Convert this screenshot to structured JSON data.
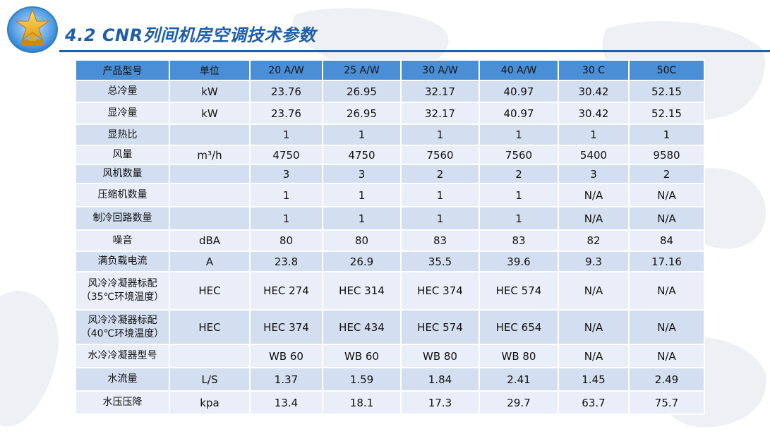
{
  "slide": {
    "title": "4.2 CNR列间机房空调技术参数"
  },
  "table": {
    "headers": [
      "产品型号",
      "单位",
      "20 A/W",
      "25 A/W",
      "30 A/W",
      "40 A/W",
      "30 C",
      "50C"
    ],
    "rows": [
      {
        "label": "总冷量",
        "unit": "kW",
        "values": [
          "23.76",
          "26.95",
          "32.17",
          "40.97",
          "30.42",
          "52.15"
        ]
      },
      {
        "label": "显冷量",
        "unit": "kW",
        "values": [
          "23.76",
          "26.95",
          "32.17",
          "40.97",
          "30.42",
          "52.15"
        ]
      },
      {
        "label": "显热比",
        "unit": "",
        "values": [
          "1",
          "1",
          "1",
          "1",
          "1",
          "1"
        ]
      },
      {
        "label": "风量",
        "unit": "m³/h",
        "values": [
          "4750",
          "4750",
          "7560",
          "7560",
          "5400",
          "9580"
        ]
      },
      {
        "label": "风机数量",
        "unit": "",
        "values": [
          "3",
          "3",
          "2",
          "2",
          "3",
          "2"
        ]
      },
      {
        "label": "压缩机数量",
        "unit": "",
        "values": [
          "1",
          "1",
          "1",
          "1",
          "N/A",
          "N/A"
        ]
      },
      {
        "label": "制冷回路数量",
        "unit": "",
        "values": [
          "1",
          "1",
          "1",
          "1",
          "N/A",
          "N/A"
        ]
      },
      {
        "label": "噪音",
        "unit": "dBA",
        "values": [
          "80",
          "80",
          "83",
          "83",
          "82",
          "84"
        ]
      },
      {
        "label": "满负载电流",
        "unit": "A",
        "values": [
          "23.8",
          "26.9",
          "35.5",
          "39.6",
          "9.3",
          "17.16"
        ]
      },
      {
        "label": "风冷冷凝器标配",
        "label2": "（35℃环境温度）",
        "unit": "HEC",
        "values": [
          "HEC 274",
          "HEC 314",
          "HEC 374",
          "HEC 574",
          "N/A",
          "N/A"
        ]
      },
      {
        "label": "风冷冷凝器标配",
        "label2": "（40℃环境温度）",
        "unit": "HEC",
        "values": [
          "HEC 374",
          "HEC 434",
          "HEC 574",
          "HEC 654",
          "N/A",
          "N/A"
        ]
      },
      {
        "label": "水冷冷凝器型号",
        "unit": "",
        "values": [
          "WB 60",
          "WB 60",
          "WB 80",
          "WB 80",
          "N/A",
          "N/A"
        ]
      },
      {
        "label": "水流量",
        "unit": "L/S",
        "values": [
          "1.37",
          "1.59",
          "1.84",
          "2.41",
          "1.45",
          "2.49"
        ]
      },
      {
        "label": "水压压降",
        "unit": "kpa",
        "values": [
          "13.4",
          "18.1",
          "17.3",
          "29.7",
          "63.7",
          "75.7"
        ]
      }
    ]
  },
  "colors": {
    "title": "#1f5fa8",
    "header_bg": "#4a8fd6",
    "row_odd": "#d3def0",
    "row_even": "#e9eef8",
    "badge_star": "#f4c430",
    "badge_ring": "#2f7fc9"
  },
  "icons": {
    "badge": "gold-star-trophy-icon"
  }
}
